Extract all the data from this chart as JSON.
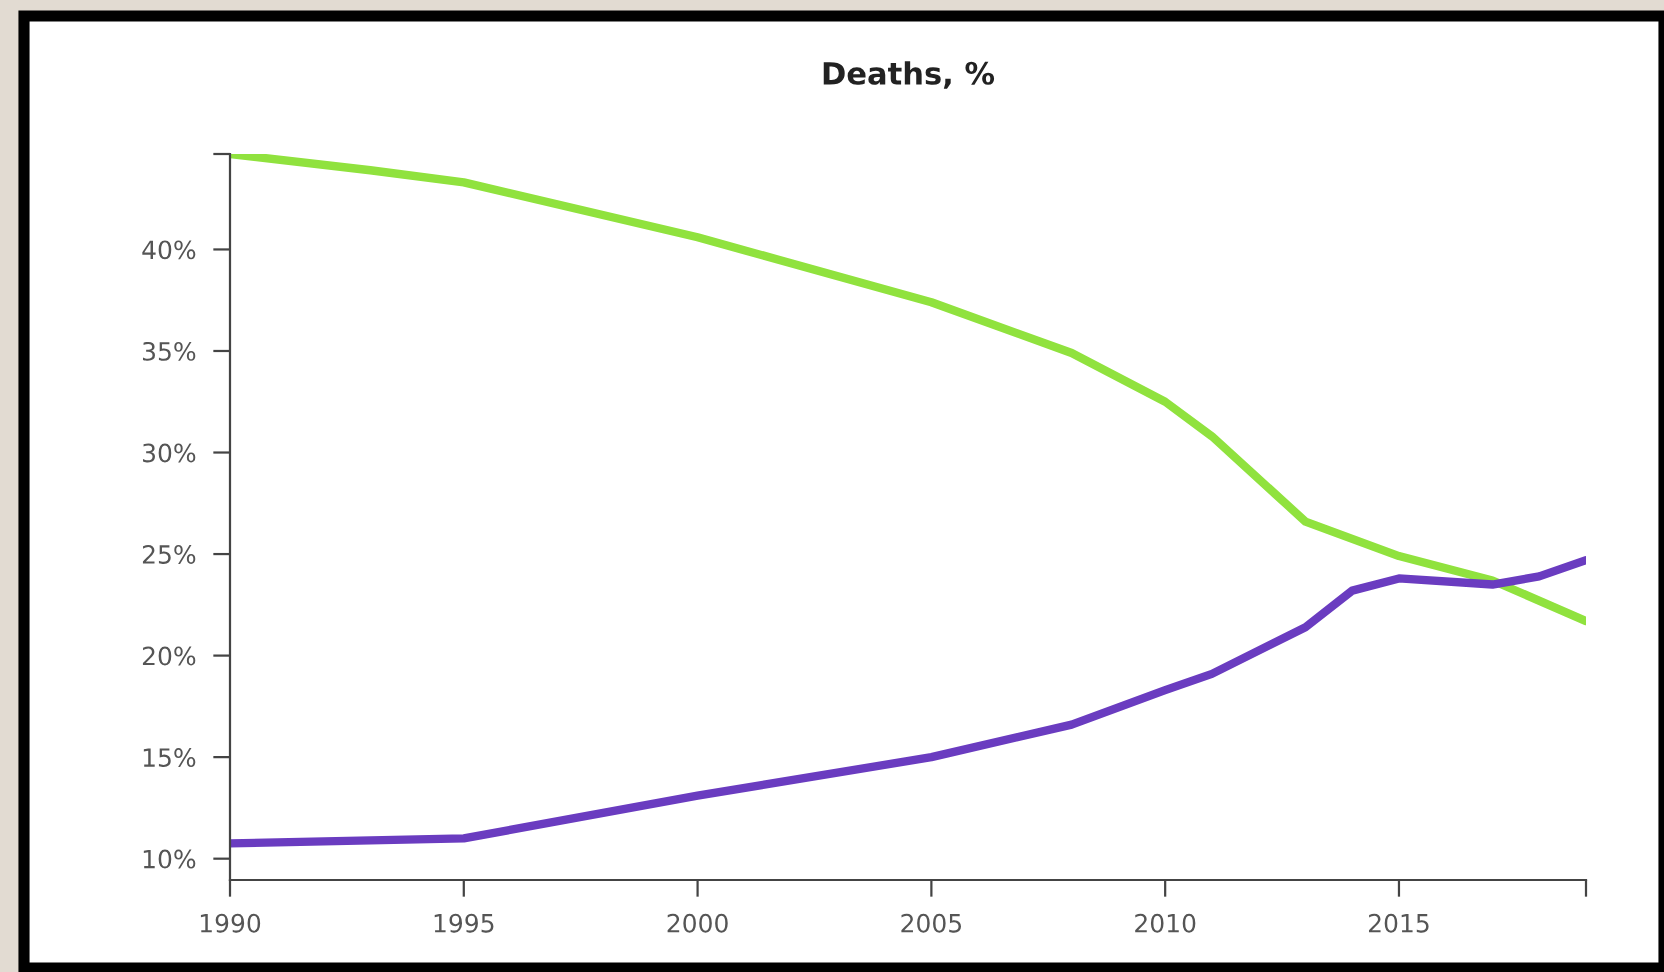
{
  "chart_data": {
    "type": "line",
    "title": "Deaths, %",
    "xlim": [
      1990,
      2019
    ],
    "xticks": [
      1990,
      1995,
      2000,
      2005,
      2010,
      2015,
      {
        "value": 2019,
        "label": null
      }
    ],
    "ylim": [
      8.95,
      44.7
    ],
    "yticks": [
      {
        "value": 10,
        "label": "10%"
      },
      {
        "value": 15,
        "label": "15%"
      },
      {
        "value": 20,
        "label": "20%"
      },
      {
        "value": 25,
        "label": "25%"
      },
      {
        "value": 30,
        "label": "30%"
      },
      {
        "value": 35,
        "label": "35%"
      },
      {
        "value": 40,
        "label": "40%"
      },
      {
        "value": 44.7,
        "label": null
      }
    ],
    "grid": false,
    "legend": false,
    "marker": "none",
    "line_style": "solid",
    "series": [
      {
        "color": "#90e23e",
        "x": [
          1990,
          1993,
          1995,
          2000,
          2005,
          2008,
          2010,
          2011,
          2013,
          2015,
          2017,
          2019
        ],
        "values": [
          44.7,
          43.9,
          43.3,
          40.6,
          37.4,
          34.9,
          32.5,
          30.8,
          26.6,
          24.9,
          23.7,
          21.7
        ]
      },
      {
        "color": "#6a3cc0",
        "x": [
          1990,
          1995,
          2000,
          2005,
          2008,
          2010,
          2011,
          2013,
          2014,
          2015,
          2017,
          2018,
          2019
        ],
        "values": [
          10.75,
          11.0,
          13.1,
          15.0,
          16.6,
          18.3,
          19.1,
          21.4,
          23.2,
          23.8,
          23.5,
          23.9,
          24.7
        ]
      }
    ]
  }
}
